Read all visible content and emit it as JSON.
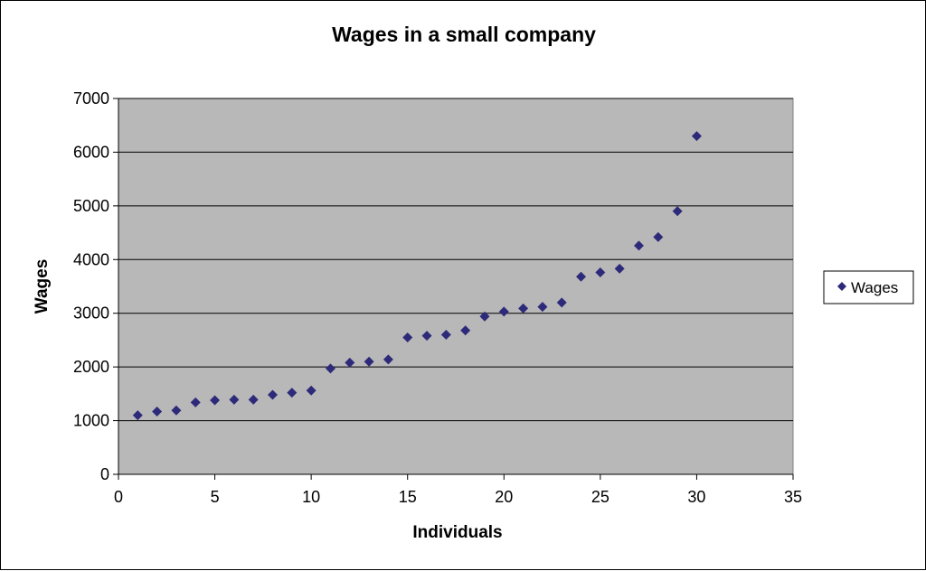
{
  "chart_data": {
    "type": "scatter",
    "title": "Wages in a small company",
    "xlabel": "Individuals",
    "ylabel": "Wages",
    "xlim": [
      0,
      35
    ],
    "ylim": [
      0,
      7000
    ],
    "x_ticks": [
      0,
      5,
      10,
      15,
      20,
      25,
      30,
      35
    ],
    "y_ticks": [
      0,
      1000,
      2000,
      3000,
      4000,
      5000,
      6000,
      7000
    ],
    "grid": "horizontal",
    "legend_position": "right",
    "plot_background": "#b8b8b8",
    "series": [
      {
        "name": "Wages",
        "color": "#2e2a7a",
        "marker": "diamond",
        "points": [
          [
            1,
            1100
          ],
          [
            2,
            1170
          ],
          [
            3,
            1190
          ],
          [
            4,
            1340
          ],
          [
            5,
            1380
          ],
          [
            6,
            1390
          ],
          [
            7,
            1390
          ],
          [
            8,
            1480
          ],
          [
            9,
            1520
          ],
          [
            10,
            1560
          ],
          [
            11,
            1970
          ],
          [
            12,
            2080
          ],
          [
            13,
            2100
          ],
          [
            14,
            2140
          ],
          [
            15,
            2550
          ],
          [
            16,
            2580
          ],
          [
            17,
            2600
          ],
          [
            18,
            2680
          ],
          [
            19,
            2940
          ],
          [
            20,
            3030
          ],
          [
            21,
            3090
          ],
          [
            22,
            3120
          ],
          [
            23,
            3200
          ],
          [
            24,
            3680
          ],
          [
            25,
            3760
          ],
          [
            26,
            3830
          ],
          [
            27,
            4260
          ],
          [
            28,
            4420
          ],
          [
            29,
            4900
          ],
          [
            30,
            6300
          ]
        ]
      }
    ]
  }
}
